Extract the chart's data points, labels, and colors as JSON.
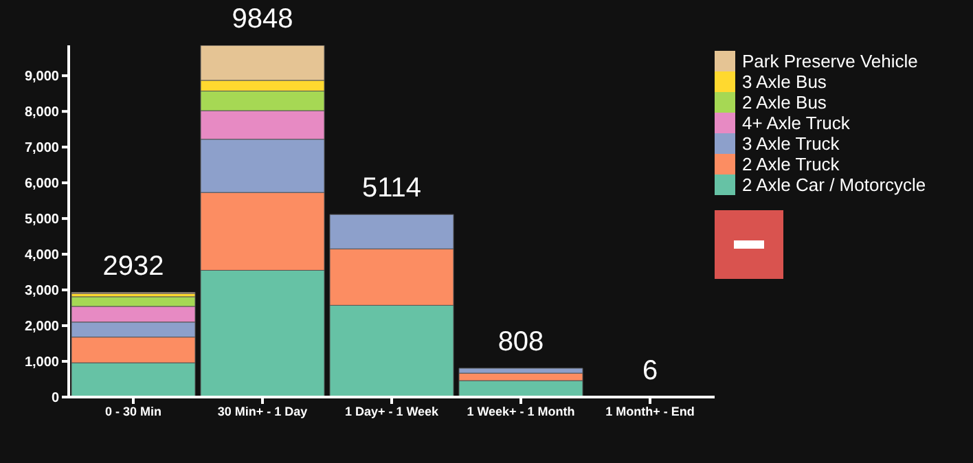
{
  "chart_data": {
    "type": "bar",
    "stacked": true,
    "categories": [
      "0 - 30 Min",
      "30 Min+ - 1 Day",
      "1 Day+ - 1 Week",
      "1 Week+ - 1 Month",
      "1 Month+ - End"
    ],
    "series": [
      {
        "name": "2 Axle Car / Motorcycle",
        "color": "#66c2a5",
        "values": [
          960,
          3550,
          2570,
          460,
          6
        ]
      },
      {
        "name": "2 Axle Truck",
        "color": "#fc8d62",
        "values": [
          720,
          2180,
          1580,
          210,
          null
        ]
      },
      {
        "name": "3 Axle Truck",
        "color": "#8da0cb",
        "values": [
          420,
          1490,
          964,
          138,
          null
        ]
      },
      {
        "name": "4+ Axle Truck",
        "color": "#e78ac3",
        "values": [
          440,
          800,
          null,
          null,
          null
        ]
      },
      {
        "name": "2 Axle Bus",
        "color": "#a6d854",
        "values": [
          270,
          550,
          null,
          null,
          null
        ]
      },
      {
        "name": "3 Axle Bus",
        "color": "#ffd92f",
        "values": [
          90,
          300,
          null,
          null,
          null
        ]
      },
      {
        "name": "Park Preserve Vehicle",
        "color": "#e5c494",
        "values": [
          32,
          978,
          null,
          null,
          null
        ]
      }
    ],
    "totals": [
      "2932",
      "9848",
      "5114",
      "808",
      "6"
    ],
    "ylim": [
      0,
      9850
    ],
    "yticks": [
      0,
      {
        "value": 1000,
        "label": "1,000"
      },
      {
        "value": 2000,
        "label": "2,000"
      },
      {
        "value": 3000,
        "label": "3,000"
      },
      {
        "value": 4000,
        "label": "4,000"
      },
      {
        "value": 5000,
        "label": "5,000"
      },
      {
        "value": 6000,
        "label": "6,000"
      },
      {
        "value": 7000,
        "label": "7,000"
      },
      {
        "value": 8000,
        "label": "8,000"
      },
      {
        "value": 9000,
        "label": "9,000"
      }
    ],
    "grid": false,
    "legend": "top right"
  }
}
